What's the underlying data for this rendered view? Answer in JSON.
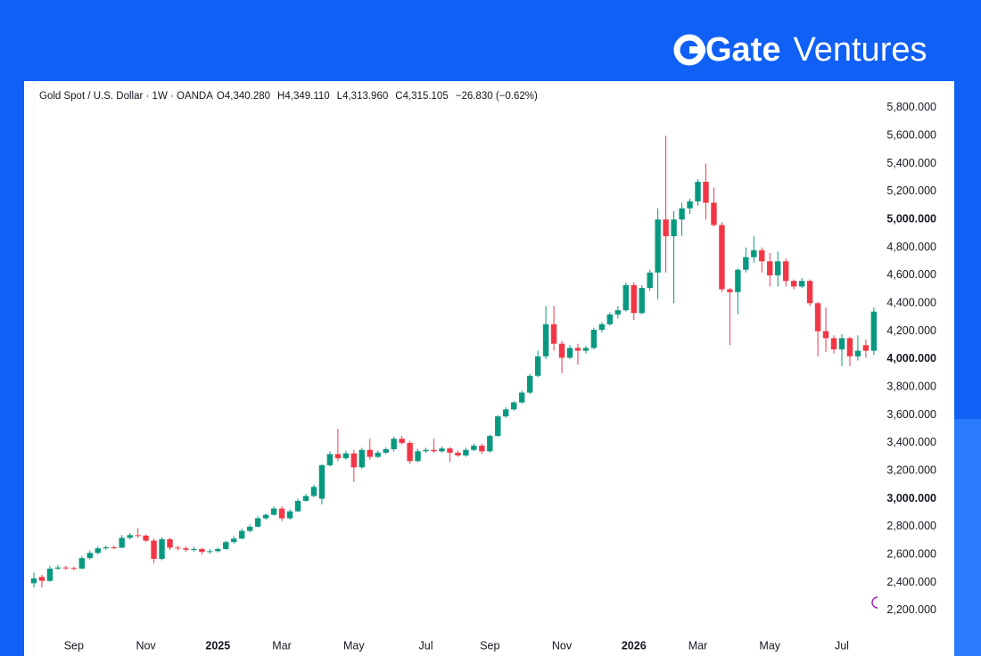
{
  "header": {
    "brand": "Gate",
    "brand_suffix": "Ventures"
  },
  "chart_data": {
    "type": "candlestick",
    "title": "Gold Spot / U.S. Dollar · 1W · OANDA",
    "quote": [
      {
        "key": "O",
        "value": "4,340.280"
      },
      {
        "key": "H",
        "value": "4,349.110"
      },
      {
        "key": "L",
        "value": "4,313.960"
      },
      {
        "key": "C",
        "value": "4,315.105"
      }
    ],
    "change": "−26.830 (−0.62%)",
    "up_color": "#089981",
    "down_color": "#f23645",
    "categories": [
      null,
      null,
      null,
      null,
      null,
      "Sep",
      null,
      null,
      null,
      null,
      null,
      null,
      null,
      null,
      "Nov",
      null,
      null,
      null,
      null,
      null,
      null,
      null,
      null,
      "2025",
      null,
      null,
      null,
      null,
      null,
      null,
      null,
      "Mar",
      null,
      null,
      null,
      null,
      null,
      null,
      null,
      null,
      "May",
      null,
      null,
      null,
      null,
      null,
      null,
      null,
      null,
      "Jul",
      null,
      null,
      null,
      null,
      null,
      null,
      null,
      "Sep",
      null,
      null,
      null,
      null,
      null,
      null,
      null,
      null,
      "Nov",
      null,
      null,
      null,
      null,
      null,
      null,
      null,
      null,
      "2026",
      null,
      null,
      null,
      null,
      null,
      null,
      null,
      "Mar",
      null,
      null,
      null,
      null,
      null,
      null,
      null,
      null,
      "May",
      null,
      null,
      null,
      null,
      null,
      null,
      null,
      null,
      "Jul",
      null,
      null,
      null,
      null
    ],
    "open": [
      2395,
      2440,
      2412,
      2500,
      2508,
      2504,
      2500,
      2575,
      2612,
      2645,
      2652,
      2650,
      2720,
      2740,
      2736,
      2700,
      2570,
      2710,
      2650,
      2645,
      2635,
      2640,
      2620,
      2625,
      2640,
      2690,
      2715,
      2770,
      2800,
      2860,
      2885,
      2930,
      2860,
      2910,
      2985,
      3020,
      3000,
      3240,
      3320,
      3290,
      3325,
      3225,
      3350,
      3300,
      3330,
      3355,
      3430,
      3400,
      3270,
      3340,
      3350,
      3340,
      3360,
      3330,
      3310,
      3350,
      3380,
      3340,
      3450,
      3590,
      3640,
      3690,
      3760,
      3880,
      4020,
      4250,
      4110,
      4010,
      4080,
      4060,
      4080,
      4210,
      4250,
      4320,
      4350,
      4530,
      4330,
      4510,
      4620,
      5000,
      4880,
      5000,
      5080,
      5130,
      5270,
      5120,
      4960,
      4500,
      4480,
      4640,
      4730,
      4780,
      4700,
      4600,
      4700,
      4560,
      4520,
      4560,
      4400,
      4200,
      4150,
      4070,
      4150,
      4020,
      4100,
      4060
    ],
    "high": [
      2470,
      2455,
      2520,
      2525,
      2520,
      2515,
      2590,
      2630,
      2660,
      2665,
      2665,
      2740,
      2755,
      2790,
      2745,
      2715,
      2725,
      2720,
      2665,
      2660,
      2655,
      2650,
      2640,
      2650,
      2700,
      2730,
      2785,
      2815,
      2875,
      2895,
      2945,
      2945,
      2925,
      3000,
      3035,
      3100,
      3250,
      3340,
      3500,
      3345,
      3350,
      3365,
      3430,
      3345,
      3370,
      3445,
      3450,
      3415,
      3355,
      3365,
      3430,
      3375,
      3370,
      3345,
      3365,
      3395,
      3395,
      3460,
      3600,
      3655,
      3700,
      3775,
      3895,
      4060,
      4380,
      4380,
      4130,
      4100,
      4110,
      4095,
      4225,
      4265,
      4335,
      4380,
      4550,
      4550,
      4530,
      4640,
      5080,
      5600,
      5060,
      5120,
      5150,
      5290,
      5400,
      5230,
      4980,
      4510,
      4650,
      4800,
      4880,
      4800,
      4760,
      4770,
      4720,
      4570,
      4580,
      4570,
      4410,
      4370,
      4170,
      4180,
      4160,
      4170,
      4140,
      4370
    ],
    "low": [
      2365,
      2365,
      2405,
      2490,
      2490,
      2488,
      2495,
      2565,
      2600,
      2635,
      2640,
      2645,
      2710,
      2720,
      2690,
      2540,
      2560,
      2635,
      2630,
      2620,
      2620,
      2600,
      2605,
      2615,
      2635,
      2680,
      2710,
      2760,
      2795,
      2850,
      2880,
      2840,
      2850,
      2905,
      2980,
      3010,
      2960,
      3230,
      3270,
      3280,
      3120,
      3215,
      3280,
      3290,
      3320,
      3340,
      3390,
      3250,
      3260,
      3330,
      3330,
      3330,
      3265,
      3300,
      3300,
      3340,
      3320,
      3330,
      3440,
      3580,
      3630,
      3680,
      3750,
      3870,
      4000,
      4060,
      3900,
      4000,
      3960,
      4040,
      4070,
      4190,
      4240,
      4290,
      4340,
      4280,
      4320,
      4490,
      4430,
      4620,
      4400,
      4880,
      5040,
      5100,
      5000,
      4950,
      4480,
      4100,
      4320,
      4620,
      4690,
      4620,
      4520,
      4520,
      4520,
      4500,
      4510,
      4380,
      4020,
      4050,
      4040,
      3950,
      3950,
      3990,
      4010,
      4030
    ],
    "close": [
      2430,
      2412,
      2500,
      2508,
      2504,
      2500,
      2575,
      2612,
      2645,
      2652,
      2650,
      2720,
      2740,
      2736,
      2700,
      2570,
      2710,
      2650,
      2645,
      2635,
      2640,
      2620,
      2625,
      2640,
      2690,
      2715,
      2770,
      2800,
      2860,
      2885,
      2930,
      2860,
      2910,
      2985,
      3020,
      3085,
      3240,
      3320,
      3290,
      3325,
      3225,
      3350,
      3300,
      3330,
      3355,
      3430,
      3400,
      3270,
      3340,
      3350,
      3340,
      3360,
      3330,
      3310,
      3350,
      3380,
      3340,
      3450,
      3590,
      3640,
      3690,
      3760,
      3880,
      4020,
      4250,
      4110,
      4010,
      4080,
      4060,
      4080,
      4210,
      4250,
      4320,
      4350,
      4530,
      4330,
      4510,
      4620,
      5000,
      4880,
      5000,
      5080,
      5130,
      5270,
      5120,
      4960,
      4500,
      4480,
      4640,
      4730,
      4780,
      4700,
      4600,
      4700,
      4560,
      4520,
      4560,
      4400,
      4200,
      4150,
      4070,
      4150,
      4020,
      4060,
      4060,
      4340
    ],
    "ylim": [
      1874,
      5991
    ],
    "yticks": [
      {
        "value": 2200,
        "label": "2,200.000"
      },
      {
        "value": 2400,
        "label": "2,400.000"
      },
      {
        "value": 2600,
        "label": "2,600.000"
      },
      {
        "value": 2800,
        "label": "2,800.000"
      },
      {
        "value": 3000,
        "label": "3,000.000"
      },
      {
        "value": 3200,
        "label": "3,200.000"
      },
      {
        "value": 3400,
        "label": "3,400.000"
      },
      {
        "value": 3600,
        "label": "3,600.000"
      },
      {
        "value": 3800,
        "label": "3,800.000"
      },
      {
        "value": 4000,
        "label": "4,000.000"
      },
      {
        "value": 4200,
        "label": "4,200.000"
      },
      {
        "value": 4400,
        "label": "4,400.000"
      },
      {
        "value": 4600,
        "label": "4,600.000"
      },
      {
        "value": 4800,
        "label": "4,800.000"
      },
      {
        "value": 5000,
        "label": "5,000.000"
      },
      {
        "value": 5200,
        "label": "5,200.000"
      },
      {
        "value": 5400,
        "label": "5,400.000"
      },
      {
        "value": 5600,
        "label": "5,600.000"
      },
      {
        "value": 5800,
        "label": "5,800.000"
      }
    ],
    "grid": false
  }
}
